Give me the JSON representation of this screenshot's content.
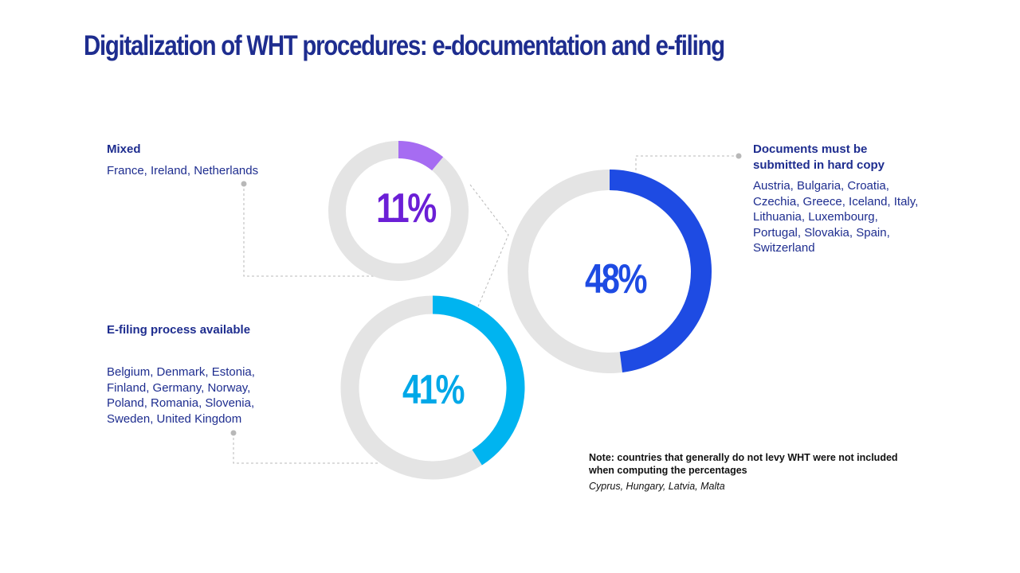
{
  "title": "Digitalization of WHT procedures: e-documentation and e-filing",
  "chart_data": {
    "type": "pie",
    "series": [
      {
        "name": "Mixed",
        "value": 11,
        "label": "11%",
        "color": "#A66CF2",
        "countries": "France, Ireland, Netherlands"
      },
      {
        "name": "Documents must be submitted in hard copy",
        "value": 48,
        "label": "48%",
        "color": "#1E4BE3",
        "countries": "Austria, Bulgaria, Croatia, Czechia, Greece, Iceland, Italy, Lithuania, Luxembourg, Portugal, Slovakia, Spain, Switzerland"
      },
      {
        "name": "E-filing process available",
        "value": 41,
        "label": "41%",
        "color": "#00B4F0",
        "countries": "Belgium, Denmark, Estonia, Finland, Germany, Norway, Poland, Romania, Slovenia, Sweden, United Kingdom"
      }
    ],
    "ring_color": "#E4E4E4",
    "label_colors": {
      "mixed": "#6B1FD6",
      "hard_copy": "#1E4BE3",
      "efiling": "#00A8E8"
    }
  },
  "labels": {
    "mixed": {
      "head": "Mixed",
      "body": "France, Ireland, Netherlands"
    },
    "hard_copy": {
      "head_line1": "Documents must be",
      "head_line2": "submitted in hard copy",
      "body_lines": [
        "Austria, Bulgaria, Croatia,",
        "Czechia, Greece, Iceland, Italy,",
        "Lithuania, Luxembourg,",
        "Portugal, Slovakia, Spain,",
        "Switzerland"
      ]
    },
    "efiling": {
      "head": "E-filing process available",
      "body_lines": [
        "Belgium, Denmark, Estonia,",
        "Finland, Germany, Norway,",
        "Poland, Romania, Slovenia,",
        "Sweden, United Kingdom"
      ]
    }
  },
  "note": {
    "head_line1": "Note: countries that generally do not levy WHT were not included",
    "head_line2": "when computing the percentages",
    "sub": "Cyprus, Hungary, Latvia, Malta"
  }
}
